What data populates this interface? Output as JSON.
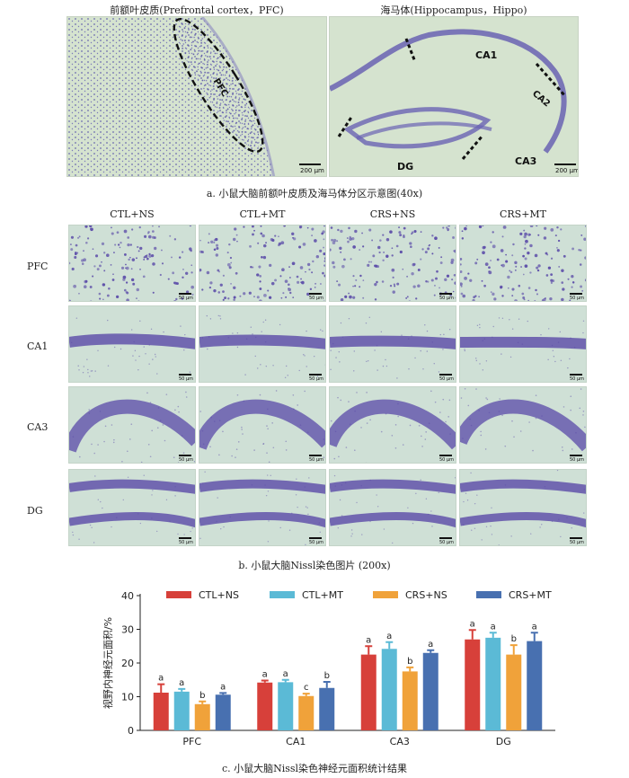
{
  "panel_a": {
    "left_title": "前额叶皮质(Prefrontal cortex，PFC)",
    "right_title": "海马体(Hippocampus，Hippo)",
    "left_region": "PFC",
    "right_regions": [
      "CA1",
      "CA2",
      "CA3",
      "DG"
    ],
    "scale": "200 μm",
    "caption": "a. 小鼠大脑前额叶皮质及海马体分区示意图(40x)"
  },
  "panel_b": {
    "columns": [
      "CTL+NS",
      "CTL+MT",
      "CRS+NS",
      "CRS+MT"
    ],
    "rows": [
      "PFC",
      "CA1",
      "CA3",
      "DG"
    ],
    "scale": "50 μm",
    "caption": "b. 小鼠大脑Nissl染色图片 (200x)"
  },
  "panel_c": {
    "caption": "c. 小鼠大脑Nissl染色神经元面积统计结果"
  },
  "colors": {
    "CTL+NS": "#d7403a",
    "CTL+MT": "#5bbad6",
    "CRS+NS": "#f0a23a",
    "CRS+MT": "#4870b0",
    "stain": "#5a4aa8"
  },
  "chart_data": {
    "type": "bar",
    "categories": [
      "PFC",
      "CA1",
      "CA3",
      "DG"
    ],
    "ylabel": "视野内神经元面积/%",
    "ylim": [
      0,
      40
    ],
    "yticks": [
      0,
      10,
      20,
      30,
      40
    ],
    "legend_position": "top",
    "grid": false,
    "series": [
      {
        "name": "CTL+NS",
        "values": [
          11.2,
          14.2,
          22.5,
          27.0
        ],
        "errors": [
          2.5,
          0.6,
          2.5,
          2.8
        ],
        "labels": [
          "a",
          "a",
          "a",
          "a"
        ]
      },
      {
        "name": "CTL+MT",
        "values": [
          11.5,
          14.3,
          24.2,
          27.5
        ],
        "errors": [
          0.8,
          0.7,
          2.0,
          1.5
        ],
        "labels": [
          "a",
          "a",
          "a",
          "a"
        ]
      },
      {
        "name": "CRS+NS",
        "values": [
          7.8,
          10.2,
          17.5,
          22.5
        ],
        "errors": [
          0.8,
          0.7,
          1.2,
          2.8
        ],
        "labels": [
          "b",
          "c",
          "b",
          "b"
        ]
      },
      {
        "name": "CRS+MT",
        "values": [
          10.6,
          12.6,
          23.0,
          26.5
        ],
        "errors": [
          0.5,
          1.8,
          0.8,
          2.5
        ],
        "labels": [
          "a",
          "b",
          "a",
          "a"
        ]
      }
    ]
  }
}
